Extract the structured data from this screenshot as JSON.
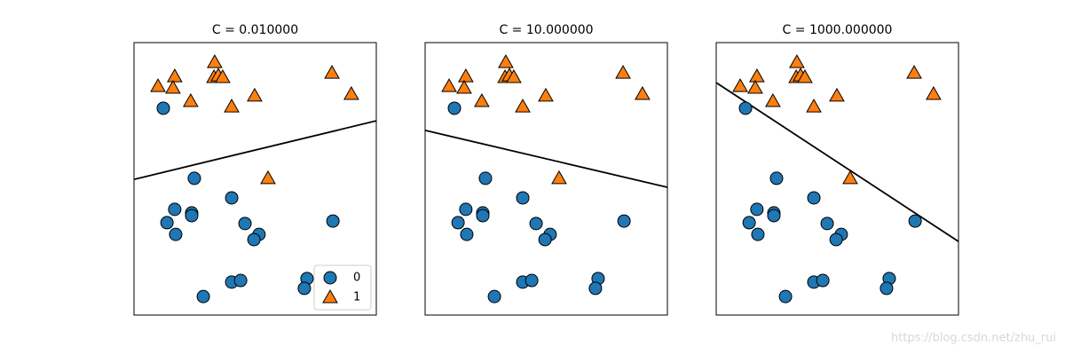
{
  "chart_data": [
    {
      "type": "scatter",
      "title": "C = 0.010000",
      "xlim": [
        0,
        10
      ],
      "ylim": [
        0,
        10
      ],
      "legend": "lower right",
      "series": [
        {
          "name": "0",
          "color": "#1f77b4",
          "marker": "o",
          "x": [
            1.21,
            2.49,
            4.03,
            1.68,
            2.38,
            2.38,
            1.36,
            1.72,
            4.58,
            5.16,
            4.95,
            8.21,
            7.14,
            7.03,
            4.03,
            4.4,
            2.86
          ],
          "values": [
            7.59,
            5.02,
            4.3,
            3.88,
            3.75,
            3.65,
            3.39,
            2.96,
            3.36,
            2.96,
            2.77,
            3.45,
            1.34,
            0.98,
            1.21,
            1.27,
            0.68
          ]
        },
        {
          "name": "1",
          "color": "#ff7f0e",
          "marker": "^",
          "x": [
            0.99,
            1.68,
            1.61,
            2.34,
            3.33,
            3.3,
            3.48,
            3.66,
            4.03,
            4.98,
            8.17,
            8.97,
            5.53
          ],
          "values": [
            8.4,
            8.76,
            8.34,
            7.85,
            9.28,
            8.73,
            8.79,
            8.73,
            7.65,
            8.05,
            8.89,
            8.11,
            5.02
          ]
        }
      ],
      "decision_boundary": {
        "x": [
          0,
          10
        ],
        "values": [
          4.98,
          7.13
        ]
      }
    },
    {
      "type": "scatter",
      "title": "C = 10.000000",
      "xlim": [
        0,
        10
      ],
      "ylim": [
        0,
        10
      ],
      "series": [
        {
          "name": "0",
          "color": "#1f77b4",
          "marker": "o",
          "x": [
            1.21,
            2.49,
            4.03,
            1.68,
            2.38,
            2.38,
            1.36,
            1.72,
            4.58,
            5.16,
            4.95,
            8.21,
            7.14,
            7.03,
            4.03,
            4.4,
            2.86
          ],
          "values": [
            7.59,
            5.02,
            4.3,
            3.88,
            3.75,
            3.65,
            3.39,
            2.96,
            3.36,
            2.96,
            2.77,
            3.45,
            1.34,
            0.98,
            1.21,
            1.27,
            0.68
          ]
        },
        {
          "name": "1",
          "color": "#ff7f0e",
          "marker": "^",
          "x": [
            0.99,
            1.68,
            1.61,
            2.34,
            3.33,
            3.3,
            3.48,
            3.66,
            4.03,
            4.98,
            8.17,
            8.97,
            5.53
          ],
          "values": [
            8.4,
            8.76,
            8.34,
            7.85,
            9.28,
            8.73,
            8.79,
            8.73,
            7.65,
            8.05,
            8.89,
            8.11,
            5.02
          ]
        }
      ],
      "decision_boundary": {
        "x": [
          0,
          10
        ],
        "values": [
          6.78,
          4.69
        ]
      }
    },
    {
      "type": "scatter",
      "title": "C = 1000.000000",
      "xlim": [
        0,
        10
      ],
      "ylim": [
        0,
        10
      ],
      "series": [
        {
          "name": "0",
          "color": "#1f77b4",
          "marker": "o",
          "x": [
            1.21,
            2.49,
            4.03,
            1.68,
            2.38,
            2.38,
            1.36,
            1.72,
            4.58,
            5.16,
            4.95,
            8.21,
            7.14,
            7.03,
            4.03,
            4.4,
            2.86
          ],
          "values": [
            7.59,
            5.02,
            4.3,
            3.88,
            3.75,
            3.65,
            3.39,
            2.96,
            3.36,
            2.96,
            2.77,
            3.45,
            1.34,
            0.98,
            1.21,
            1.27,
            0.68
          ]
        },
        {
          "name": "1",
          "color": "#ff7f0e",
          "marker": "^",
          "x": [
            0.99,
            1.68,
            1.61,
            2.34,
            3.33,
            3.3,
            3.48,
            3.66,
            4.03,
            4.98,
            8.17,
            8.97,
            5.53
          ],
          "values": [
            8.4,
            8.76,
            8.34,
            7.85,
            9.28,
            8.73,
            8.79,
            8.73,
            7.65,
            8.05,
            8.89,
            8.11,
            5.02
          ]
        }
      ],
      "decision_boundary": {
        "x": [
          0,
          10
        ],
        "values": [
          8.53,
          2.7
        ]
      }
    }
  ],
  "watermark": "https://blog.csdn.net/zhu_rui"
}
